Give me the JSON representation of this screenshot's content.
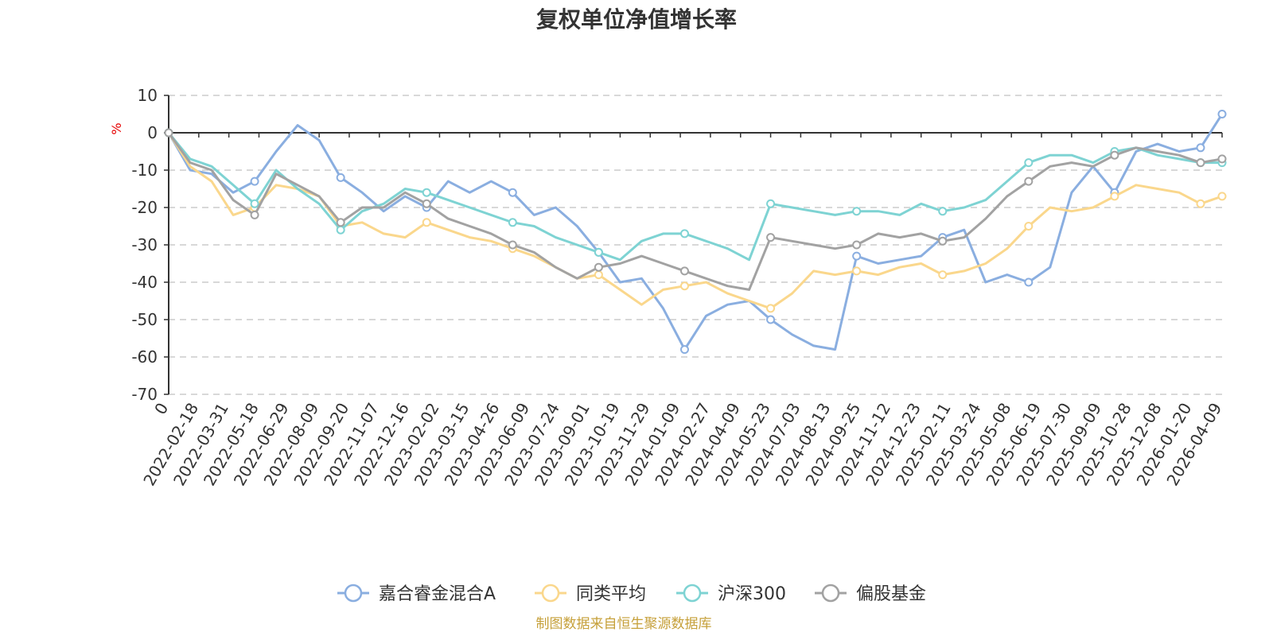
{
  "chart_data": {
    "type": "line",
    "title": "复权单位净值增长率",
    "ylabel": "%",
    "ylim": [
      -70,
      10
    ],
    "yticks": [
      10,
      0,
      -10,
      -20,
      -30,
      -40,
      -50,
      -60,
      -70
    ],
    "grid": true,
    "legend_position": "bottom-center",
    "x_tick_labels": [
      "0",
      "2022-02-18",
      "2022-03-31",
      "2022-05-18",
      "2022-06-29",
      "2022-08-09",
      "2022-09-20",
      "2022-11-07",
      "2022-12-16",
      "2023-02-02",
      "2023-03-15",
      "2023-04-26",
      "2023-06-09",
      "2023-07-24",
      "2023-09-01",
      "2023-10-19",
      "2023-11-29",
      "2024-01-09",
      "2024-02-27",
      "2024-04-09",
      "2024-05-23",
      "2024-07-03",
      "2024-08-13",
      "2024-09-25",
      "2024-11-12",
      "2024-12-23",
      "2025-02-11",
      "2025-03-24",
      "2025-05-08",
      "2025-06-19",
      "2025-07-30",
      "2025-09-09",
      "2025-10-28",
      "2025-12-08",
      "2026-01-20",
      "2026-04-09"
    ],
    "series": [
      {
        "name": "嘉合睿金混合A",
        "color": "#8aaee0",
        "values": [
          0,
          -10,
          -11,
          -16,
          -13,
          -5,
          2,
          -2,
          -12,
          -16,
          -21,
          -17,
          -20,
          -13,
          -16,
          -13,
          -16,
          -22,
          -20,
          -25,
          -32,
          -40,
          -39,
          -47,
          -58,
          -49,
          -46,
          -45,
          -50,
          -54,
          -57,
          -58,
          -33,
          -35,
          -34,
          -33,
          -28,
          -26,
          -40,
          -38,
          -40,
          -36,
          -16,
          -9,
          -16,
          -5,
          -3,
          -5,
          -4,
          5
        ]
      },
      {
        "name": "同类平均",
        "color": "#fad78c",
        "values": [
          0,
          -9,
          -13,
          -22,
          -20,
          -14,
          -15,
          -17,
          -25,
          -24,
          -27,
          -28,
          -24,
          -26,
          -28,
          -29,
          -31,
          -33,
          -36,
          -39,
          -38,
          -42,
          -46,
          -42,
          -41,
          -40,
          -43,
          -45,
          -47,
          -43,
          -37,
          -38,
          -37,
          -38,
          -36,
          -35,
          -38,
          -37,
          -35,
          -31,
          -25,
          -20,
          -21,
          -20,
          -17,
          -14,
          -15,
          -16,
          -19,
          -17
        ]
      },
      {
        "name": "沪深300",
        "color": "#7ed3d3",
        "values": [
          0,
          -7,
          -9,
          -14,
          -19,
          -10,
          -15,
          -19,
          -26,
          -21,
          -19,
          -15,
          -16,
          -18,
          -20,
          -22,
          -24,
          -25,
          -28,
          -30,
          -32,
          -34,
          -29,
          -27,
          -27,
          -29,
          -31,
          -34,
          -19,
          -20,
          -21,
          -22,
          -21,
          -21,
          -22,
          -19,
          -21,
          -20,
          -18,
          -13,
          -8,
          -6,
          -6,
          -8,
          -5,
          -4,
          -6,
          -7,
          -8,
          -8
        ]
      },
      {
        "name": "偏股基金",
        "color": "#a2a2a2",
        "values": [
          0,
          -8,
          -10,
          -18,
          -22,
          -11,
          -14,
          -17,
          -24,
          -20,
          -20,
          -16,
          -19,
          -23,
          -25,
          -27,
          -30,
          -32,
          -36,
          -39,
          -36,
          -35,
          -33,
          -35,
          -37,
          -39,
          -41,
          -42,
          -28,
          -29,
          -30,
          -31,
          -30,
          -27,
          -28,
          -27,
          -29,
          -28,
          -23,
          -17,
          -13,
          -9,
          -8,
          -9,
          -6,
          -4,
          -5,
          -6,
          -8,
          -7
        ]
      }
    ]
  },
  "source_note": "制图数据来自恒生聚源数据库",
  "colors": {
    "axis": "#333333",
    "grid": "#cccccc",
    "unit_label": "#e60000",
    "source_note": "#c6a03a"
  }
}
